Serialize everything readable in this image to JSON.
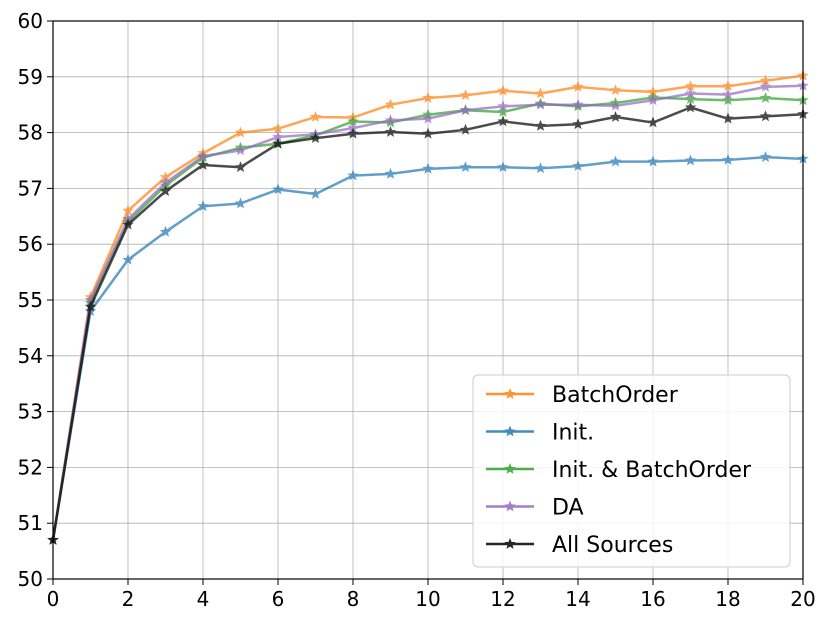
{
  "chart_data": {
    "type": "line",
    "title": "",
    "xlabel": "",
    "ylabel": "",
    "xlim": [
      0,
      20
    ],
    "ylim": [
      50,
      60
    ],
    "xticks": [
      0,
      2,
      4,
      6,
      8,
      10,
      12,
      14,
      16,
      18,
      20
    ],
    "yticks": [
      50,
      51,
      52,
      53,
      54,
      55,
      56,
      57,
      58,
      59,
      60
    ],
    "grid": true,
    "legend_position": "lower-right",
    "x": [
      0,
      1,
      2,
      3,
      4,
      5,
      6,
      7,
      8,
      9,
      10,
      11,
      12,
      13,
      14,
      15,
      16,
      17,
      18,
      19,
      20
    ],
    "series": [
      {
        "name": "BatchOrder",
        "color": "#ff7f0e",
        "values": [
          50.7,
          55.05,
          56.6,
          57.2,
          57.63,
          58.0,
          58.07,
          58.28,
          58.27,
          58.5,
          58.62,
          58.67,
          58.75,
          58.7,
          58.82,
          58.76,
          58.73,
          58.83,
          58.83,
          58.93,
          59.02
        ]
      },
      {
        "name": "Init.",
        "color": "#1f77b4",
        "values": [
          50.7,
          54.8,
          55.72,
          56.22,
          56.68,
          56.73,
          56.98,
          56.9,
          57.23,
          57.26,
          57.35,
          57.38,
          57.38,
          57.36,
          57.4,
          57.48,
          57.48,
          57.5,
          57.51,
          57.56,
          57.53
        ]
      },
      {
        "name": "Init. & BatchOrder",
        "color": "#2ca02c",
        "values": [
          50.7,
          54.95,
          56.4,
          57.05,
          57.55,
          57.73,
          57.8,
          57.95,
          58.2,
          58.18,
          58.32,
          58.4,
          58.37,
          58.52,
          58.47,
          58.53,
          58.63,
          58.6,
          58.58,
          58.62,
          58.58
        ]
      },
      {
        "name": "DA",
        "color": "#9467bd",
        "values": [
          50.7,
          55.0,
          56.45,
          57.1,
          57.58,
          57.68,
          57.92,
          57.97,
          58.08,
          58.22,
          58.25,
          58.4,
          58.47,
          58.5,
          58.5,
          58.48,
          58.58,
          58.7,
          58.68,
          58.82,
          58.84
        ]
      },
      {
        "name": "All Sources",
        "color": "#000000",
        "values": [
          50.7,
          54.88,
          56.35,
          56.95,
          57.42,
          57.38,
          57.8,
          57.9,
          57.98,
          58.01,
          57.98,
          58.05,
          58.2,
          58.12,
          58.15,
          58.28,
          58.18,
          58.45,
          58.25,
          58.29,
          58.33
        ]
      }
    ]
  }
}
